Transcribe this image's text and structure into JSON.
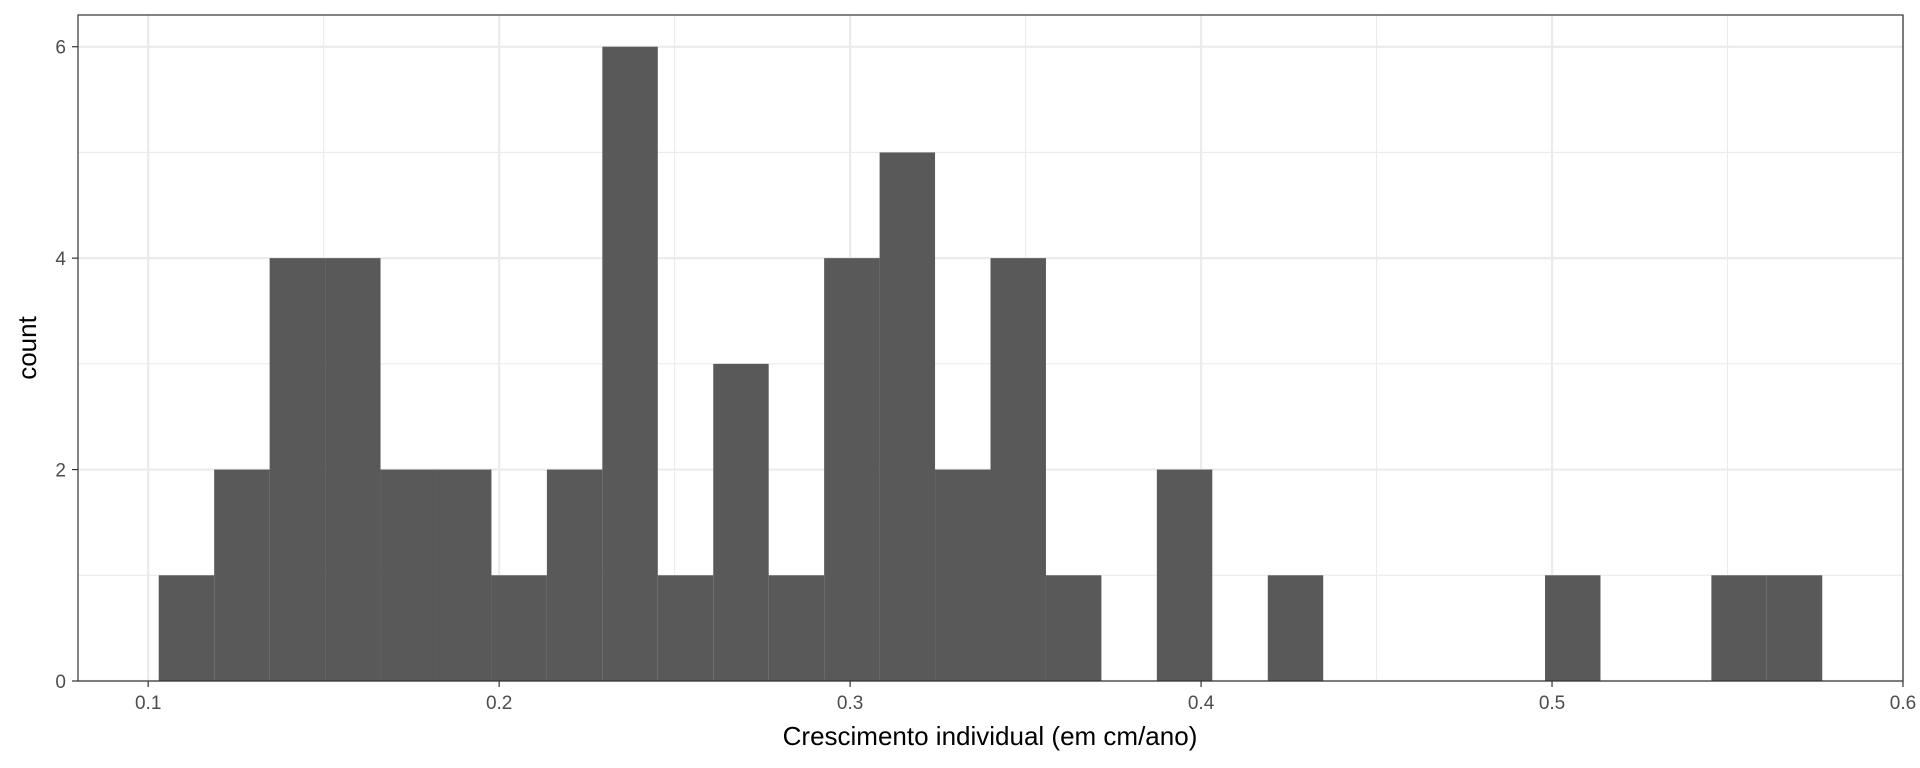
{
  "chart_data": {
    "type": "bar",
    "subtype": "histogram",
    "xlabel": "Crescimento individual (em cm/ano)",
    "ylabel": "count",
    "xlim": [
      0.08,
      0.6
    ],
    "ylim": [
      0,
      6.3
    ],
    "x_ticks": [
      "0.1",
      "0.2",
      "0.3",
      "0.4",
      "0.5",
      "0.6"
    ],
    "y_ticks": [
      "0",
      "2",
      "4",
      "6"
    ],
    "bin_width": 0.0158,
    "bins": [
      {
        "start": 0.103,
        "end": 0.1188,
        "count": 1
      },
      {
        "start": 0.1188,
        "end": 0.1346,
        "count": 2
      },
      {
        "start": 0.1346,
        "end": 0.1504,
        "count": 4
      },
      {
        "start": 0.1504,
        "end": 0.1662,
        "count": 4
      },
      {
        "start": 0.1662,
        "end": 0.182,
        "count": 2
      },
      {
        "start": 0.182,
        "end": 0.1978,
        "count": 2
      },
      {
        "start": 0.1978,
        "end": 0.2136,
        "count": 1
      },
      {
        "start": 0.2136,
        "end": 0.2294,
        "count": 2
      },
      {
        "start": 0.2294,
        "end": 0.2452,
        "count": 6
      },
      {
        "start": 0.2452,
        "end": 0.261,
        "count": 1
      },
      {
        "start": 0.261,
        "end": 0.2768,
        "count": 3
      },
      {
        "start": 0.2768,
        "end": 0.2926,
        "count": 1
      },
      {
        "start": 0.2926,
        "end": 0.3084,
        "count": 4
      },
      {
        "start": 0.3084,
        "end": 0.3242,
        "count": 5
      },
      {
        "start": 0.3242,
        "end": 0.34,
        "count": 2
      },
      {
        "start": 0.34,
        "end": 0.3558,
        "count": 4
      },
      {
        "start": 0.3558,
        "end": 0.3716,
        "count": 1
      },
      {
        "start": 0.3716,
        "end": 0.3874,
        "count": 0
      },
      {
        "start": 0.3874,
        "end": 0.4032,
        "count": 2
      },
      {
        "start": 0.4032,
        "end": 0.419,
        "count": 0
      },
      {
        "start": 0.419,
        "end": 0.4348,
        "count": 1
      },
      {
        "start": 0.4348,
        "end": 0.4506,
        "count": 0
      },
      {
        "start": 0.4506,
        "end": 0.4664,
        "count": 0
      },
      {
        "start": 0.4664,
        "end": 0.4822,
        "count": 0
      },
      {
        "start": 0.4822,
        "end": 0.498,
        "count": 0
      },
      {
        "start": 0.498,
        "end": 0.5138,
        "count": 1
      },
      {
        "start": 0.5138,
        "end": 0.5296,
        "count": 0
      },
      {
        "start": 0.5296,
        "end": 0.5454,
        "count": 0
      },
      {
        "start": 0.5454,
        "end": 0.5612,
        "count": 1
      },
      {
        "start": 0.5612,
        "end": 0.577,
        "count": 1
      }
    ],
    "grid": true,
    "bar_color": "#595959",
    "panel_border_color": "#333333",
    "grid_color": "#ebebeb",
    "tick_label_color": "#4d4d4d"
  }
}
